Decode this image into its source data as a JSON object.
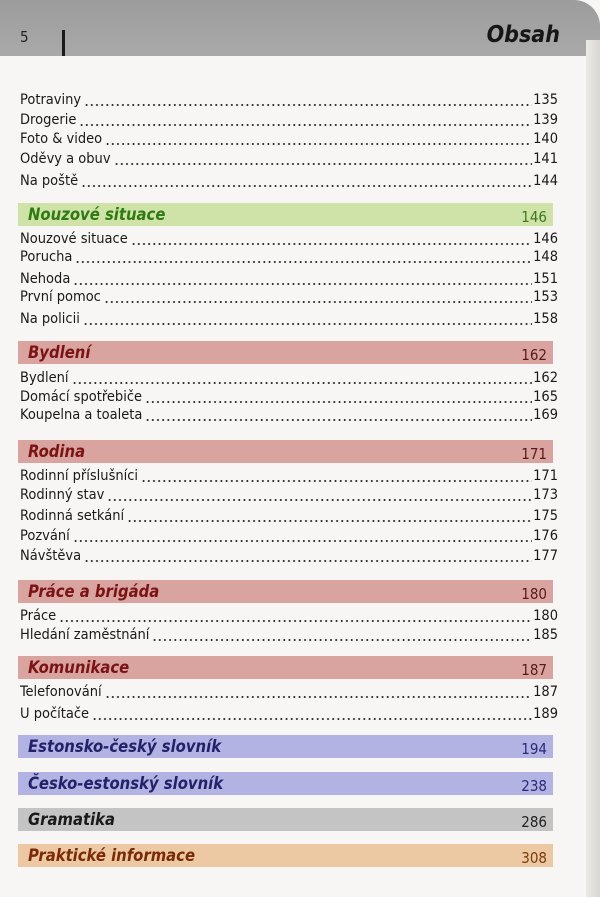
{
  "header": {
    "page_number": "5",
    "title": "Obsah"
  },
  "blocks": [
    {
      "type": "items",
      "items": [
        {
          "label": "Potraviny",
          "page": "135"
        },
        {
          "label": "Drogerie",
          "page": "139"
        },
        {
          "label": "Foto & video",
          "page": "140"
        },
        {
          "label": "Oděvy a obuv",
          "page": "141"
        },
        {
          "label": "Na poště",
          "page": "144"
        }
      ]
    },
    {
      "type": "section",
      "title": "Nouzové situace",
      "page": "146",
      "bg": "#cfe3a8",
      "fg": "#2f7a12",
      "pfg": "#3d7a1e",
      "items": [
        {
          "label": "Nouzové situace",
          "page": "146"
        },
        {
          "label": "Porucha",
          "page": "148"
        },
        {
          "label": "Nehoda",
          "page": "151"
        },
        {
          "label": "První pomoc",
          "page": "153"
        },
        {
          "label": "Na policii",
          "page": "158"
        }
      ]
    },
    {
      "type": "section",
      "title": "Bydlení",
      "page": "162",
      "bg": "#d9a3a0",
      "fg": "#7a1414",
      "pfg": "#5a1a1a",
      "items": [
        {
          "label": "Bydlení",
          "page": "162"
        },
        {
          "label": "Domácí spotřebiče",
          "page": "165"
        },
        {
          "label": "Koupelna a toaleta",
          "page": "169"
        }
      ]
    },
    {
      "type": "section",
      "title": "Rodina",
      "page": "171",
      "bg": "#d9a3a0",
      "fg": "#7a1414",
      "pfg": "#5a1a1a",
      "items": [
        {
          "label": "Rodinní příslušníci",
          "page": "171"
        },
        {
          "label": "Rodinný stav",
          "page": "173"
        },
        {
          "label": "Rodinná setkání",
          "page": "175"
        },
        {
          "label": "Pozvání",
          "page": "176"
        },
        {
          "label": "Návštěva",
          "page": "177"
        }
      ]
    },
    {
      "type": "section",
      "title": "Práce a brigáda",
      "page": "180",
      "bg": "#d9a3a0",
      "fg": "#7a1414",
      "pfg": "#5a1a1a",
      "items": [
        {
          "label": "Práce",
          "page": "180"
        },
        {
          "label": "Hledání zaměstnání",
          "page": "185"
        }
      ]
    },
    {
      "type": "section",
      "title": "Komunikace",
      "page": "187",
      "bg": "#d9a3a0",
      "fg": "#7a1414",
      "pfg": "#5a1a1a",
      "items": [
        {
          "label": "Telefonování",
          "page": "187"
        },
        {
          "label": "U počítače",
          "page": "189"
        }
      ]
    },
    {
      "type": "section",
      "title": "Estonsko-český slovník",
      "page": "194",
      "bg": "#b3b3e3",
      "fg": "#22226a",
      "pfg": "#2a2a7a",
      "items": []
    },
    {
      "type": "section",
      "title": "Česko-estonský slovník",
      "page": "238",
      "bg": "#b3b3e3",
      "fg": "#22226a",
      "pfg": "#2a2a7a",
      "items": []
    },
    {
      "type": "section",
      "title": "Gramatika",
      "page": "286",
      "bg": "#c4c4c4",
      "fg": "#1a1a1a",
      "pfg": "#222222",
      "items": []
    },
    {
      "type": "section",
      "title": "Praktické informace",
      "page": "308",
      "bg": "#ecc9a3",
      "fg": "#7a2a08",
      "pfg": "#7a3a10",
      "items": []
    }
  ]
}
